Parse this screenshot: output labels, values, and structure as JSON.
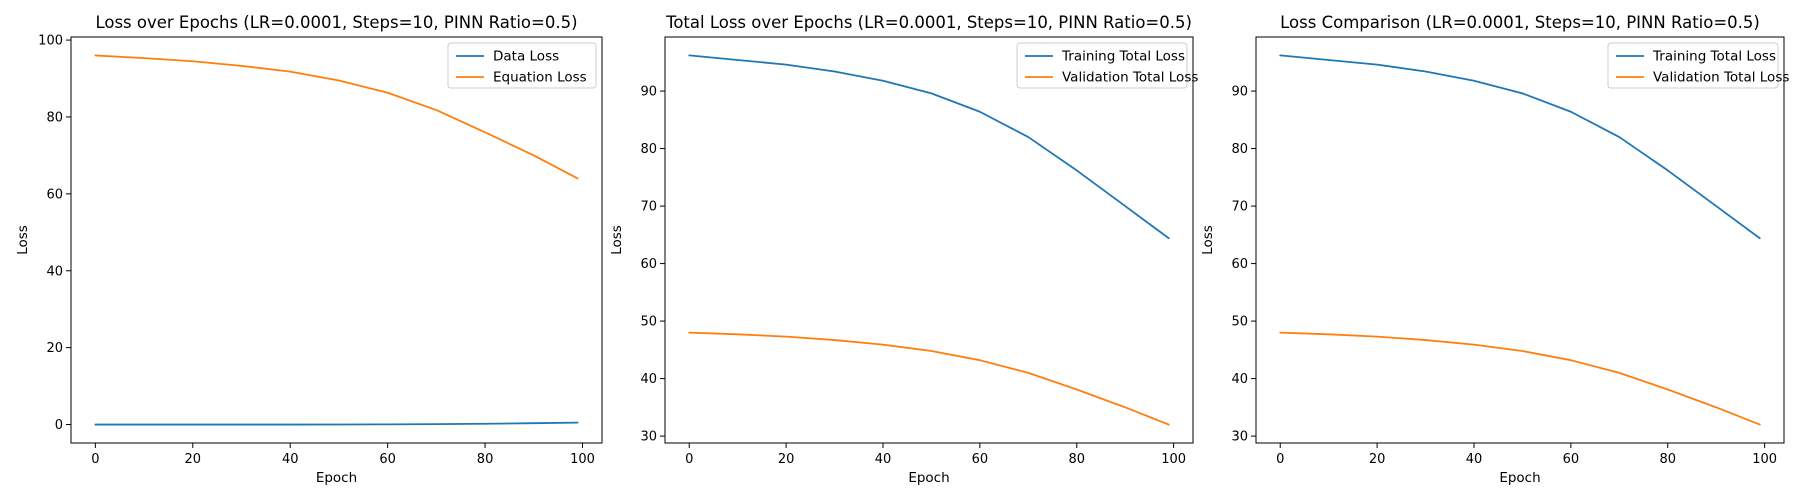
{
  "chart_data": [
    {
      "type": "line",
      "title": "Loss over Epochs (LR=0.0001, Steps=10, PINN Ratio=0.5)",
      "xlabel": "Epoch",
      "ylabel": "Loss",
      "xlim": [
        -5,
        104
      ],
      "ylim": [
        -4.8,
        100.8
      ],
      "xticks": [
        0,
        20,
        40,
        60,
        80,
        100
      ],
      "yticks": [
        0,
        20,
        40,
        60,
        80,
        100
      ],
      "legend_position": "upper right",
      "x": [
        0,
        10,
        20,
        30,
        40,
        50,
        60,
        70,
        80,
        90,
        99
      ],
      "series": [
        {
          "name": "Data Loss",
          "color": "#1f77b4",
          "values": [
            0.0,
            0.0,
            0.0,
            0.0,
            0.0,
            0.02,
            0.05,
            0.1,
            0.2,
            0.35,
            0.5
          ]
        },
        {
          "name": "Equation Loss",
          "color": "#ff7f0e",
          "values": [
            96.0,
            95.3,
            94.5,
            93.3,
            91.8,
            89.5,
            86.3,
            81.8,
            76.0,
            70.0,
            64.0
          ]
        }
      ]
    },
    {
      "type": "line",
      "title": "Total Loss over Epochs (LR=0.0001, Steps=10, PINN Ratio=0.5)",
      "xlabel": "Epoch",
      "ylabel": "Loss",
      "xlim": [
        -5,
        104
      ],
      "ylim": [
        28.8,
        99.4
      ],
      "xticks": [
        0,
        20,
        40,
        60,
        80,
        100
      ],
      "yticks": [
        30,
        40,
        50,
        60,
        70,
        80,
        90
      ],
      "legend_position": "upper right",
      "x": [
        0,
        10,
        20,
        30,
        40,
        50,
        60,
        70,
        80,
        90,
        99
      ],
      "series": [
        {
          "name": "Training Total Loss",
          "color": "#1f77b4",
          "values": [
            96.2,
            95.4,
            94.6,
            93.4,
            91.8,
            89.6,
            86.4,
            82.0,
            76.2,
            70.0,
            64.4
          ]
        },
        {
          "name": "Validation Total Loss",
          "color": "#ff7f0e",
          "values": [
            48.0,
            47.7,
            47.3,
            46.7,
            45.9,
            44.8,
            43.2,
            41.0,
            38.1,
            35.0,
            32.0
          ]
        }
      ]
    },
    {
      "type": "line",
      "title": "Loss Comparison (LR=0.0001, Steps=10, PINN Ratio=0.5)",
      "xlabel": "Epoch",
      "ylabel": "Loss",
      "xlim": [
        -5,
        104
      ],
      "ylim": [
        28.8,
        99.4
      ],
      "xticks": [
        0,
        20,
        40,
        60,
        80,
        100
      ],
      "yticks": [
        30,
        40,
        50,
        60,
        70,
        80,
        90
      ],
      "legend_position": "upper right",
      "x": [
        0,
        10,
        20,
        30,
        40,
        50,
        60,
        70,
        80,
        90,
        99
      ],
      "series": [
        {
          "name": "Training Total Loss",
          "color": "#1f77b4",
          "values": [
            96.2,
            95.4,
            94.6,
            93.4,
            91.8,
            89.6,
            86.4,
            82.0,
            76.2,
            70.0,
            64.4
          ]
        },
        {
          "name": "Validation Total Loss",
          "color": "#ff7f0e",
          "values": [
            48.0,
            47.7,
            47.3,
            46.7,
            45.9,
            44.8,
            43.2,
            41.0,
            38.1,
            35.0,
            32.0
          ]
        }
      ]
    }
  ]
}
